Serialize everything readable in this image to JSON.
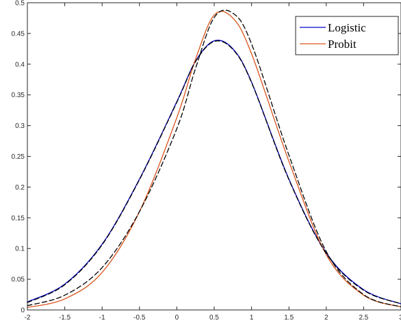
{
  "chart_data": {
    "type": "line",
    "xlim": [
      -2,
      3
    ],
    "ylim": [
      0,
      0.5
    ],
    "xticks": [
      "-2",
      "-1.5",
      "-1",
      "-0.5",
      "0",
      "0.5",
      "1",
      "1.5",
      "2",
      "2.5",
      "3"
    ],
    "yticks": [
      "0",
      "0.05",
      "0.1",
      "0.15",
      "0.2",
      "0.25",
      "0.3",
      "0.35",
      "0.4",
      "0.45",
      "0.5"
    ],
    "grid": false,
    "legend_position": "top-right",
    "x": [
      -2.0,
      -1.5,
      -1.0,
      -0.5,
      0.0,
      0.25,
      0.5,
      0.75,
      1.0,
      1.5,
      2.0,
      2.5,
      3.0
    ],
    "series": [
      {
        "name": "Logistic",
        "color": "#0000cc",
        "style": "solid",
        "values": [
          0.013,
          0.042,
          0.107,
          0.213,
          0.339,
          0.405,
          0.438,
          0.425,
          0.371,
          0.213,
          0.093,
          0.033,
          0.01
        ]
      },
      {
        "name": "Probit",
        "color": "#d95319",
        "style": "solid",
        "values": [
          0.004,
          0.018,
          0.061,
          0.16,
          0.313,
          0.408,
          0.48,
          0.475,
          0.417,
          0.242,
          0.09,
          0.024,
          0.005
        ]
      },
      {
        "name": "",
        "color": "#000000",
        "style": "dashed",
        "values": [
          0.012,
          0.041,
          0.106,
          0.212,
          0.338,
          0.404,
          0.437,
          0.424,
          0.37,
          0.212,
          0.092,
          0.032,
          0.01
        ]
      },
      {
        "name": "",
        "color": "#000000",
        "style": "dashed",
        "values": [
          0.007,
          0.024,
          0.069,
          0.16,
          0.295,
          0.393,
          0.476,
          0.483,
          0.433,
          0.252,
          0.095,
          0.025,
          0.005
        ]
      }
    ]
  }
}
